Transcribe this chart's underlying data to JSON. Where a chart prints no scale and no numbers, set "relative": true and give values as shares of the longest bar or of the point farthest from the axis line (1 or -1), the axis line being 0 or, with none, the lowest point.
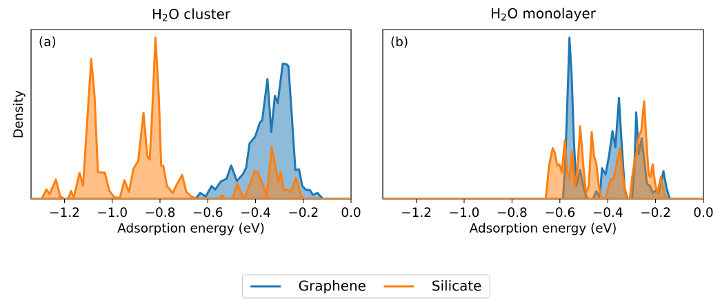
{
  "chart_data": [
    {
      "type": "area",
      "title": "H$_{2}$O cluster",
      "xlabel": "Adsorption energy (eV)",
      "ylabel": "Density",
      "relative": true,
      "legend": "bottom",
      "xlim": [
        -1.34,
        0
      ],
      "xticks": [
        {
          "value": -1.2,
          "label": "−1.2"
        },
        {
          "value": -1.0,
          "label": "−1.0"
        },
        {
          "value": -0.8,
          "label": "−0.8"
        },
        {
          "value": -0.6,
          "label": "−0.6"
        },
        {
          "value": -0.4,
          "label": "−0.4"
        },
        {
          "value": -0.2,
          "label": "−0.2"
        },
        {
          "value": 0,
          "label": "0.0"
        }
      ],
      "annotations": [
        "(a)"
      ],
      "series": [
        {
          "name": "Graphene",
          "color": "#1f77b4",
          "x": [
            -1.34,
            -0.651,
            -0.632,
            -0.608,
            -0.584,
            -0.569,
            -0.545,
            -0.521,
            -0.502,
            -0.478,
            -0.454,
            -0.439,
            -0.425,
            -0.401,
            -0.382,
            -0.372,
            -0.35,
            -0.334,
            -0.319,
            -0.307,
            -0.286,
            -0.271,
            -0.262,
            -0.247,
            -0.233,
            -0.218,
            -0.204,
            -0.19,
            -0.172,
            -0.16,
            -0.141,
            -0.117,
            0
          ],
          "values": [
            0,
            0,
            0.037,
            0.016,
            0.08,
            0.058,
            0.108,
            0.126,
            0.208,
            0.111,
            0.151,
            0.194,
            0.344,
            0.387,
            0.473,
            0.487,
            0.744,
            0.415,
            0.639,
            0.594,
            0.839,
            0.836,
            0.822,
            0.494,
            0.18,
            0.183,
            0.08,
            0.058,
            0.054,
            0.026,
            0.037,
            0,
            0
          ]
        },
        {
          "name": "Silicate",
          "color": "#ff7f0e",
          "x": [
            -1.34,
            -1.295,
            -1.276,
            -1.262,
            -1.236,
            -1.218,
            -1.199,
            -1.185,
            -1.172,
            -1.161,
            -1.137,
            -1.122,
            -1.088,
            -1.074,
            -1.06,
            -1.045,
            -1.031,
            -1.012,
            -0.992,
            -0.968,
            -0.949,
            -0.93,
            -0.911,
            -0.891,
            -0.869,
            -0.853,
            -0.843,
            -0.834,
            -0.819,
            -0.805,
            -0.795,
            -0.786,
            -0.771,
            -0.747,
            -0.728,
            -0.707,
            -0.69,
            -0.67,
            -0.646,
            -0.603,
            -0.555,
            -0.54,
            -0.526,
            -0.497,
            -0.476,
            -0.449,
            -0.43,
            -0.403,
            -0.391,
            -0.367,
            -0.353,
            -0.332,
            -0.314,
            -0.305,
            -0.295,
            -0.281,
            -0.266,
            -0.252,
            -0.23,
            -0.209,
            -0.195,
            0
          ],
          "values": [
            0,
            0,
            0.058,
            0.03,
            0.12,
            0.016,
            0,
            0,
            0.049,
            0.009,
            0.161,
            0.083,
            0.869,
            0.636,
            0.166,
            0.163,
            0.163,
            0.051,
            0.011,
            0.006,
            0.116,
            0.044,
            0.187,
            0.237,
            0.533,
            0.265,
            0.244,
            0.493,
            1.0,
            0.637,
            0.205,
            0.205,
            0.08,
            0.037,
            0.094,
            0.148,
            0.044,
            0.016,
            0,
            0,
            0,
            0.023,
            0,
            0,
            0.094,
            0,
            0.066,
            0.173,
            0.166,
            0.08,
            0.016,
            0.32,
            0.18,
            0.108,
            0.166,
            0.051,
            0.058,
            0.044,
            0.13,
            0.016,
            0,
            0
          ]
        }
      ]
    },
    {
      "type": "area",
      "title": "H$_{2}$O monolayer",
      "xlabel": "Adsorption energy (eV)",
      "relative": true,
      "xlim": [
        -1.34,
        0
      ],
      "xticks": [
        {
          "value": -1.2,
          "label": "−1.2"
        },
        {
          "value": -1.0,
          "label": "−1.0"
        },
        {
          "value": -0.8,
          "label": "−0.8"
        },
        {
          "value": -0.6,
          "label": "−0.6"
        },
        {
          "value": -0.4,
          "label": "−0.4"
        },
        {
          "value": -0.2,
          "label": "−0.2"
        },
        {
          "value": 0,
          "label": "0.0"
        }
      ],
      "annotations": [
        "(b)"
      ],
      "series": [
        {
          "color": "#1f77b4",
          "x": [
            -1.34,
            -0.587,
            -0.578,
            -0.568,
            -0.56,
            -0.551,
            -0.541,
            -0.531,
            -0.515,
            -0.5,
            -0.486,
            -0.462,
            -0.448,
            -0.433,
            -0.424,
            -0.409,
            -0.395,
            -0.38,
            -0.368,
            -0.353,
            -0.342,
            -0.329,
            -0.318,
            -0.298,
            -0.289,
            -0.281,
            -0.27,
            -0.258,
            -0.245,
            -0.236,
            -0.223,
            -0.212,
            -0.202,
            -0.188,
            -0.167,
            -0.154,
            -0.14,
            0
          ],
          "values": [
            0,
            0,
            0.207,
            0.634,
            1.0,
            0.776,
            0.349,
            0.08,
            0.179,
            0.065,
            0,
            0,
            0.048,
            0.009,
            0.19,
            0.151,
            0.264,
            0.42,
            0.32,
            0.626,
            0.349,
            0.065,
            0,
            0,
            0.179,
            0.537,
            0.278,
            0.378,
            0.207,
            0.094,
            0.08,
            0.037,
            0.051,
            0.037,
            0.172,
            0.065,
            0,
            0
          ]
        },
        {
          "color": "#ff7f0e",
          "x": [
            -1.34,
            -0.659,
            -0.645,
            -0.63,
            -0.621,
            -0.611,
            -0.602,
            -0.592,
            -0.579,
            -0.57,
            -0.56,
            -0.549,
            -0.537,
            -0.527,
            -0.515,
            -0.502,
            -0.491,
            -0.479,
            -0.467,
            -0.457,
            -0.448,
            -0.438,
            -0.428,
            -0.409,
            -0.399,
            -0.387,
            -0.375,
            -0.361,
            -0.348,
            -0.337,
            -0.322,
            -0.308,
            -0.294,
            -0.279,
            -0.269,
            -0.26,
            -0.248,
            -0.239,
            -0.229,
            -0.221,
            -0.212,
            -0.202,
            -0.192,
            -0.178,
            -0.164,
            -0.154,
            0
          ],
          "values": [
            0,
            0,
            0.207,
            0.314,
            0.286,
            0.207,
            0.214,
            0.165,
            0.364,
            0.179,
            0.122,
            0.293,
            0.08,
            0.179,
            0.45,
            0.207,
            0.037,
            0.08,
            0.415,
            0.264,
            0.222,
            0.094,
            0.009,
            0,
            0.065,
            0.122,
            0.122,
            0.236,
            0.314,
            0.151,
            0,
            0,
            0.179,
            0.293,
            0.395,
            0.42,
            0.605,
            0.378,
            0.151,
            0.136,
            0.214,
            0.094,
            0.037,
            0.136,
            0.037,
            0,
            0
          ]
        }
      ]
    }
  ]
}
